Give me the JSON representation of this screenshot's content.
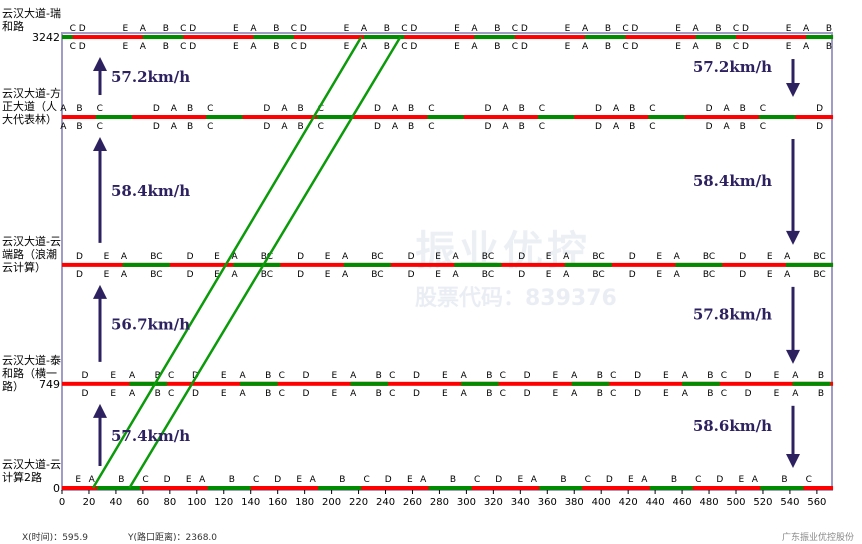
{
  "chart_data": {
    "type": "time-space-diagram",
    "xlim": [
      0,
      572
    ],
    "ylim": [
      0,
      3242
    ],
    "x_ticks": [
      0,
      20,
      40,
      60,
      80,
      100,
      120,
      140,
      160,
      180,
      200,
      220,
      240,
      260,
      280,
      300,
      320,
      340,
      360,
      380,
      400,
      420,
      440,
      460,
      480,
      500,
      520,
      540,
      560
    ],
    "cycle": 82,
    "intersections": [
      {
        "name": "云汉大道-云计算2路",
        "distance": 0,
        "distance_label": "0",
        "phases": [
          [
            "E",
            12
          ],
          [
            "A",
            22
          ],
          [
            "B",
            44
          ],
          [
            "C",
            62
          ],
          [
            "D",
            78
          ]
        ],
        "green": [
          [
            26,
            58
          ]
        ],
        "labels_below": false
      },
      {
        "name": "云汉大道-泰和路（横一路）",
        "distance": 749,
        "distance_label": "749",
        "phases": [
          [
            "D",
            17
          ],
          [
            "E",
            38
          ],
          [
            "A",
            52
          ],
          [
            "B",
            71
          ],
          [
            "C",
            81
          ]
        ],
        "green": [
          [
            50,
            78
          ]
        ],
        "labels_below": true
      },
      {
        "name": "云汉大道-云端路（浪潮云计算）",
        "distance": 1604,
        "distance_label": "",
        "phases": [
          [
            "D",
            13
          ],
          [
            "E",
            33
          ],
          [
            "A",
            46
          ],
          [
            "BC",
            70
          ]
        ],
        "green": [
          [
            45,
            80
          ]
        ],
        "labels_below": true
      },
      {
        "name": "云汉大道-方正大道（人大代表林）",
        "distance": 2667,
        "distance_label": "",
        "phases": [
          [
            "B",
            13
          ],
          [
            "C",
            28
          ],
          [
            "D",
            70
          ],
          [
            "A",
            1
          ]
        ],
        "green": [
          [
            25,
            52
          ]
        ],
        "labels_below": true
      },
      {
        "name": "云汉大道-瑞和路",
        "distance": 3242,
        "distance_label": "3242",
        "phases": [
          [
            "D",
            15
          ],
          [
            "E",
            47
          ],
          [
            "A",
            60
          ],
          [
            "B",
            77
          ],
          [
            "C",
            8
          ]
        ],
        "green": [
          [
            60,
            90
          ]
        ],
        "labels_below": true
      }
    ],
    "green_band": [
      [
        [
          23,
          0
        ],
        [
          222,
          3242
        ]
      ],
      [
        [
          50,
          0
        ],
        [
          251,
          3242
        ]
      ]
    ],
    "speeds_up": [
      "57.4km/h",
      "56.7km/h",
      "58.4km/h",
      "57.2km/h"
    ],
    "speeds_down": [
      "58.6km/h",
      "57.8km/h",
      "58.4km/h",
      "57.2km/h"
    ],
    "colors": {
      "red": "#ff0000",
      "green": "#008c00",
      "band": "#0a9a0a",
      "arrow": "#2d2160",
      "frame": "#a09cc8"
    }
  },
  "footer": {
    "x_readout": "X(时间)：595.9",
    "y_readout": "Y(路口距离)：2368.0",
    "brand": "广东振业优控股份"
  },
  "watermark": {
    "title": "振业优控",
    "code": "股票代码：839376"
  }
}
